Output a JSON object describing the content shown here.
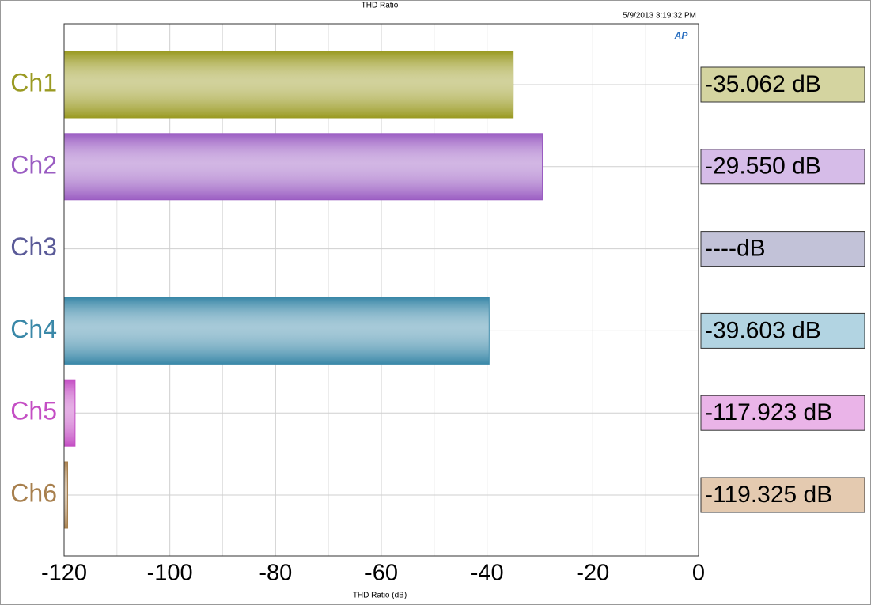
{
  "chart_data": {
    "type": "hbar",
    "title": "THD Ratio",
    "timestamp": "5/9/2013 3:19:32 PM",
    "logo": "AP",
    "x_label": "THD Ratio (dB)",
    "categories": [
      "Ch1",
      "Ch2",
      "Ch3",
      "Ch4",
      "Ch5",
      "Ch6"
    ],
    "values": [
      -35.062,
      -29.55,
      null,
      -39.603,
      -117.923,
      -119.325
    ],
    "value_labels": [
      "-35.062 dB",
      "-29.550 dB",
      "----dB",
      "-39.603 dB",
      "-117.923 dB",
      "-119.325 dB"
    ],
    "colors": [
      "#9a9a22",
      "#9a5cc2",
      "#5a5a98",
      "#3a88a8",
      "#c44ec4",
      "#a8804e"
    ],
    "label_box_colors": [
      "#d4d4a0",
      "#d6bce8",
      "#c2c2d8",
      "#b2d4e2",
      "#eab4e8",
      "#e4cab0"
    ],
    "xlim": [
      -120,
      0
    ],
    "xticks": [
      -120,
      -100,
      -80,
      -60,
      -40,
      -20,
      0
    ],
    "minor_xticks": [
      -110,
      -90,
      -70,
      -50,
      -30,
      -10
    ],
    "grid": true
  }
}
